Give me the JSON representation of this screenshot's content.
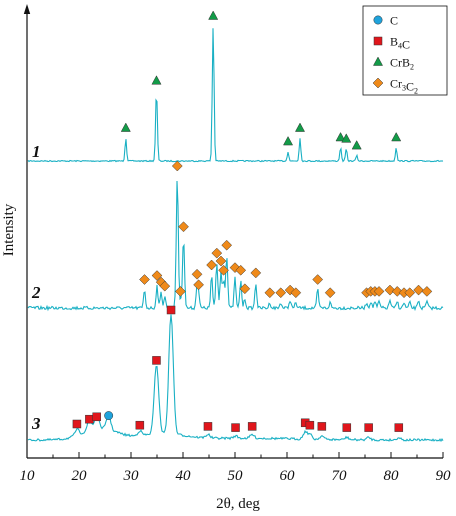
{
  "chart_data": {
    "type": "line",
    "xlabel": "2θ, deg",
    "ylabel": "Intensity",
    "xlim": [
      10,
      90
    ],
    "xticks": [
      "10",
      "20",
      "30",
      "40",
      "50",
      "60",
      "70",
      "80",
      "90"
    ],
    "y_axis_ticks": false,
    "legend": {
      "placement": "top-right",
      "entries": [
        {
          "key": "C",
          "label": "C",
          "sub": "",
          "label2": "",
          "sub2": "",
          "marker": "circle",
          "color": "#1fa3dc"
        },
        {
          "key": "B4C",
          "label": "B",
          "sub": "4",
          "label2": "C",
          "sub2": "",
          "marker": "square",
          "color": "#e0161c"
        },
        {
          "key": "CrB2",
          "label": "CrB",
          "sub": "2",
          "label2": "",
          "sub2": "",
          "marker": "triangle",
          "color": "#139b48"
        },
        {
          "key": "Cr3C2",
          "label": "Cr",
          "sub": "3",
          "label2": "C",
          "sub2": "2",
          "marker": "diamond",
          "color": "#ef8a1a"
        }
      ]
    },
    "line_color": "#1ab0c4",
    "series": [
      {
        "label": "1",
        "peaks": [
          {
            "x": 29.0,
            "h": 0.17,
            "phase": "CrB2"
          },
          {
            "x": 34.9,
            "h": 0.52,
            "phase": "CrB2"
          },
          {
            "x": 45.8,
            "h": 1.0,
            "phase": "CrB2"
          },
          {
            "x": 60.2,
            "h": 0.07,
            "phase": "CrB2"
          },
          {
            "x": 62.5,
            "h": 0.17,
            "phase": "CrB2"
          },
          {
            "x": 70.3,
            "h": 0.1,
            "phase": "CrB2"
          },
          {
            "x": 71.4,
            "h": 0.09,
            "phase": "CrB2"
          },
          {
            "x": 73.4,
            "h": 0.04,
            "phase": "CrB2"
          },
          {
            "x": 81.0,
            "h": 0.1,
            "phase": "CrB2"
          }
        ]
      },
      {
        "label": "2",
        "peaks": [
          {
            "x": 32.6,
            "h": 0.14,
            "phase": "Cr3C2"
          },
          {
            "x": 35.0,
            "h": 0.17,
            "phase": "Cr3C2"
          },
          {
            "x": 35.8,
            "h": 0.12,
            "phase": "Cr3C2"
          },
          {
            "x": 36.5,
            "h": 0.09,
            "phase": "Cr3C2"
          },
          {
            "x": 38.9,
            "h": 1.0,
            "phase": "Cr3C2"
          },
          {
            "x": 39.5,
            "h": 0.05,
            "phase": "Cr3C2"
          },
          {
            "x": 40.1,
            "h": 0.54,
            "phase": "Cr3C2"
          },
          {
            "x": 42.7,
            "h": 0.18,
            "phase": "Cr3C2"
          },
          {
            "x": 43.0,
            "h": 0.1,
            "phase": "Cr3C2"
          },
          {
            "x": 45.5,
            "h": 0.25,
            "phase": "Cr3C2"
          },
          {
            "x": 46.5,
            "h": 0.34,
            "phase": "Cr3C2"
          },
          {
            "x": 47.3,
            "h": 0.28,
            "phase": "Cr3C2"
          },
          {
            "x": 47.8,
            "h": 0.21,
            "phase": "Cr3C2"
          },
          {
            "x": 48.4,
            "h": 0.4,
            "phase": "Cr3C2"
          },
          {
            "x": 50.0,
            "h": 0.23,
            "phase": "Cr3C2"
          },
          {
            "x": 51.1,
            "h": 0.21,
            "phase": "Cr3C2"
          },
          {
            "x": 51.9,
            "h": 0.07,
            "phase": "Cr3C2"
          },
          {
            "x": 54.0,
            "h": 0.19,
            "phase": "Cr3C2"
          },
          {
            "x": 56.7,
            "h": 0.04,
            "phase": "Cr3C2"
          },
          {
            "x": 58.8,
            "h": 0.04,
            "phase": "Cr3C2"
          },
          {
            "x": 60.6,
            "h": 0.06,
            "phase": "Cr3C2"
          },
          {
            "x": 61.7,
            "h": 0.04,
            "phase": "Cr3C2"
          },
          {
            "x": 65.9,
            "h": 0.14,
            "phase": "Cr3C2"
          },
          {
            "x": 68.3,
            "h": 0.04,
            "phase": "Cr3C2"
          },
          {
            "x": 75.3,
            "h": 0.04,
            "phase": "Cr3C2"
          },
          {
            "x": 76.1,
            "h": 0.05,
            "phase": "Cr3C2"
          },
          {
            "x": 76.9,
            "h": 0.05,
            "phase": "Cr3C2"
          },
          {
            "x": 77.7,
            "h": 0.05,
            "phase": "Cr3C2"
          },
          {
            "x": 79.8,
            "h": 0.06,
            "phase": "Cr3C2"
          },
          {
            "x": 81.2,
            "h": 0.05,
            "phase": "Cr3C2"
          },
          {
            "x": 82.5,
            "h": 0.04,
            "phase": "Cr3C2"
          },
          {
            "x": 83.6,
            "h": 0.04,
            "phase": "Cr3C2"
          },
          {
            "x": 85.3,
            "h": 0.06,
            "phase": "Cr3C2"
          },
          {
            "x": 86.9,
            "h": 0.05,
            "phase": "Cr3C2"
          }
        ]
      },
      {
        "label": "3",
        "peaks": [
          {
            "x": 19.6,
            "h": 0.05,
            "phase": "B4C"
          },
          {
            "x": 22.0,
            "h": 0.09,
            "phase": "B4C"
          },
          {
            "x": 23.4,
            "h": 0.11,
            "phase": "B4C"
          },
          {
            "x": 25.7,
            "h": 0.12,
            "phase": "C"
          },
          {
            "x": 31.7,
            "h": 0.04,
            "phase": "B4C"
          },
          {
            "x": 34.9,
            "h": 0.58,
            "phase": "B4C"
          },
          {
            "x": 37.7,
            "h": 1.0,
            "phase": "B4C"
          },
          {
            "x": 44.8,
            "h": 0.03,
            "phase": "B4C"
          },
          {
            "x": 50.1,
            "h": 0.02,
            "phase": "B4C"
          },
          {
            "x": 53.3,
            "h": 0.03,
            "phase": "B4C"
          },
          {
            "x": 63.5,
            "h": 0.06,
            "phase": "B4C"
          },
          {
            "x": 64.4,
            "h": 0.04,
            "phase": "B4C"
          },
          {
            "x": 66.7,
            "h": 0.03,
            "phase": "B4C"
          },
          {
            "x": 71.5,
            "h": 0.02,
            "phase": "B4C"
          },
          {
            "x": 75.7,
            "h": 0.02,
            "phase": "B4C"
          },
          {
            "x": 81.5,
            "h": 0.02,
            "phase": "B4C"
          }
        ]
      }
    ]
  }
}
